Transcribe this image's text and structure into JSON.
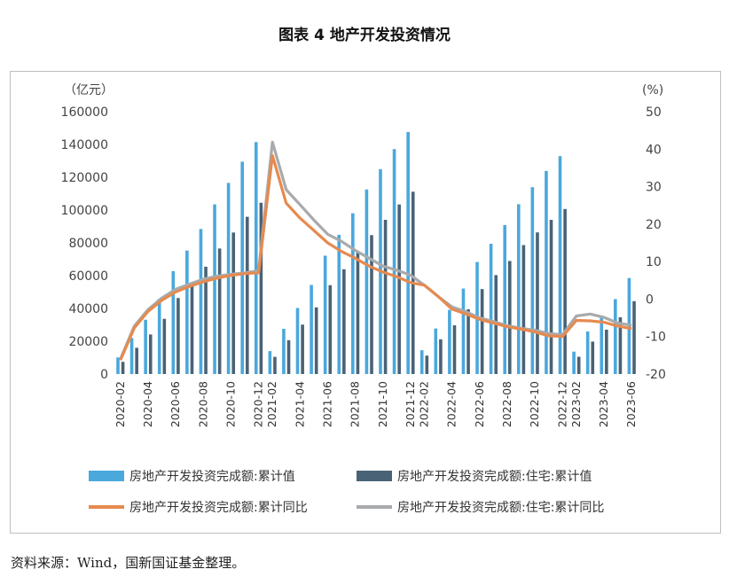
{
  "title": "图表 4  地产开发投资情况",
  "source": "资料来源：Wind，国新国证基金整理。",
  "colors": {
    "bar_total": "#4aa8dc",
    "bar_residential": "#4a6275",
    "line_total": "#e68a4f",
    "line_residential": "#a8aaad",
    "right_axis_negative": "#c0392b"
  },
  "chart_data": {
    "type": "bar+line",
    "left_axis": {
      "unit": "（亿元）",
      "min": 0,
      "max": 160000,
      "ticks": [
        0,
        20000,
        40000,
        60000,
        80000,
        100000,
        120000,
        140000,
        160000
      ]
    },
    "right_axis": {
      "unit": "(%)",
      "min": -20,
      "max": 50,
      "ticks": [
        50,
        40,
        30,
        20,
        10,
        0,
        -10,
        -20
      ]
    },
    "categories": [
      "2020-02",
      "2020-03",
      "2020-04",
      "2020-05",
      "2020-06",
      "2020-07",
      "2020-08",
      "2020-09",
      "2020-10",
      "2020-11",
      "2020-12",
      "2021-02",
      "2021-03",
      "2021-04",
      "2021-05",
      "2021-06",
      "2021-07",
      "2021-08",
      "2021-09",
      "2021-10",
      "2021-11",
      "2021-12",
      "2022-02",
      "2022-03",
      "2022-04",
      "2022-05",
      "2022-06",
      "2022-07",
      "2022-08",
      "2022-09",
      "2022-10",
      "2022-11",
      "2022-12",
      "2023-02",
      "2023-03",
      "2023-04",
      "2023-05",
      "2023-06"
    ],
    "xtick_labels": [
      "2020-02",
      "2020-04",
      "2020-06",
      "2020-08",
      "2020-10",
      "2020-12",
      "2021-02",
      "2021-04",
      "2021-06",
      "2021-08",
      "2021-10",
      "2021-12",
      "2022-02",
      "2022-04",
      "2022-06",
      "2022-08",
      "2022-10",
      "2022-12",
      "2023-02",
      "2023-04",
      "2023-06"
    ],
    "series": [
      {
        "name": "房地产开发投资完成额:累计值",
        "kind": "bar",
        "axis": "left",
        "values": [
          10115,
          21963,
          33103,
          45920,
          62780,
          75325,
          88454,
          103484,
          116556,
          129492,
          141443,
          13986,
          27576,
          40241,
          54318,
          72179,
          84895,
          98060,
          112568,
          124934,
          137169,
          147602,
          14499,
          27765,
          39154,
          52134,
          68314,
          79462,
          90809,
          103559,
          113945,
          123863,
          132895,
          13669,
          25974,
          35514,
          45701,
          58550
        ]
      },
      {
        "name": "房地产开发投资完成额:住宅:累计值",
        "kind": "bar",
        "axis": "left",
        "values": [
          7453,
          16014,
          24132,
          33672,
          46350,
          55706,
          65454,
          76555,
          86295,
          95894,
          104446,
          10470,
          20624,
          30127,
          40664,
          54176,
          63907,
          74039,
          84716,
          94046,
          103416,
          111173,
          11224,
          21178,
          29719,
          39521,
          51804,
          60337,
          68946,
          78637,
          86373,
          94015,
          100646,
          10527,
          19770,
          27072,
          34608,
          44439
        ]
      },
      {
        "name": "房地产开发投资完成额:累计同比",
        "kind": "line",
        "axis": "right",
        "values": [
          -16.3,
          -7.7,
          -3.3,
          -0.3,
          1.9,
          3.4,
          4.6,
          5.6,
          6.3,
          6.8,
          7.0,
          38.3,
          25.6,
          21.6,
          18.3,
          15.0,
          12.7,
          10.9,
          8.8,
          7.2,
          6.0,
          4.4,
          3.7,
          0.7,
          -2.7,
          -4.0,
          -5.4,
          -6.4,
          -7.4,
          -8.0,
          -8.8,
          -9.8,
          -10.0,
          -5.7,
          -5.8,
          -6.2,
          -7.2,
          -7.9
        ]
      },
      {
        "name": "房地产开发投资完成额:住宅:累计同比",
        "kind": "line",
        "axis": "right",
        "values": [
          -16.0,
          -7.2,
          -2.8,
          0.3,
          2.6,
          4.0,
          5.3,
          6.1,
          6.6,
          7.0,
          7.6,
          41.9,
          29.2,
          25.2,
          21.1,
          17.3,
          15.4,
          13.0,
          10.9,
          8.8,
          7.7,
          6.4,
          3.7,
          0.7,
          -2.1,
          -3.4,
          -5.0,
          -6.0,
          -7.1,
          -7.8,
          -8.3,
          -9.2,
          -9.5,
          -4.5,
          -4.0,
          -4.9,
          -6.4,
          -7.0
        ]
      }
    ],
    "legend_position": "bottom"
  }
}
